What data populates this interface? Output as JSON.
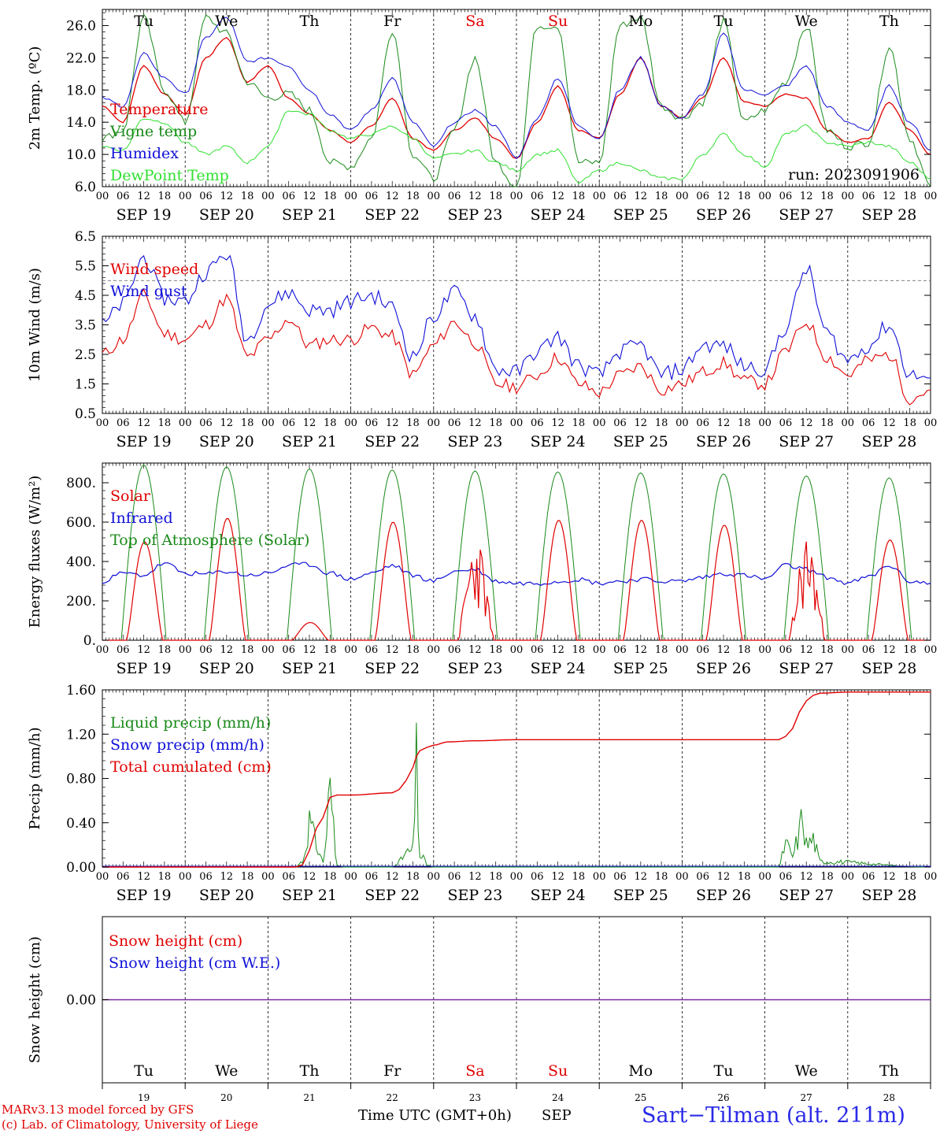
{
  "days": [
    "Tu",
    "We",
    "Th",
    "Fr",
    "Sa",
    "Su",
    "Mo",
    "Tu",
    "We",
    "Th"
  ],
  "day_colors": [
    "#000000",
    "#000000",
    "#000000",
    "#000000",
    "#e00000",
    "#e00000",
    "#000000",
    "#000000",
    "#000000",
    "#000000"
  ],
  "dates": [
    "SEP 19",
    "SEP 20",
    "SEP 21",
    "SEP 22",
    "SEP 23",
    "SEP 24",
    "SEP 25",
    "SEP 26",
    "SEP 27",
    "SEP 28"
  ],
  "day_numbers": [
    "19",
    "20",
    "21",
    "22",
    "23",
    "24",
    "25",
    "26",
    "27",
    "28"
  ],
  "hour_labels": [
    "00",
    "06",
    "12",
    "18"
  ],
  "run_label": "run: 2023091906",
  "footer": {
    "model": "MARv3.13 model forced by GFS",
    "copyright": "(c) Lab. of Climatology, University of Liege",
    "axis_title": "Time UTC (GMT+0h)",
    "month": "SEP",
    "station": "Sart−Tilman (alt. 211m)"
  },
  "colors": {
    "red": "#e00000",
    "green": "#1a8a1a",
    "blue": "#1010d8",
    "light_green": "#30e030",
    "purple": "#7a2aa0"
  },
  "chart_data": [
    {
      "type": "line",
      "id": "temp",
      "ylabel": "2m Temp. (ºC)",
      "ylim": [
        6.0,
        28.0
      ],
      "yticks": [
        6.0,
        10.0,
        14.0,
        18.0,
        22.0,
        26.0
      ],
      "ytick_labels": [
        "6.0",
        "10.0",
        "14.0",
        "18.0",
        "22.0",
        "26.0"
      ],
      "x_unit": "hours since SEP 19 00 UTC",
      "series": [
        {
          "name": "Temperature",
          "color": "red",
          "x": [
            0,
            6,
            12,
            18,
            24,
            30,
            36,
            42,
            48,
            54,
            60,
            66,
            72,
            78,
            84,
            90,
            96,
            102,
            108,
            114,
            120,
            126,
            132,
            138,
            144,
            150,
            156,
            162,
            168,
            174,
            180,
            186,
            192,
            198,
            204,
            210,
            216,
            222,
            228,
            234,
            240
          ],
          "y": [
            16.0,
            14.0,
            21.0,
            17.5,
            15.0,
            22.0,
            24.5,
            19.0,
            21.0,
            17.0,
            15.0,
            13.0,
            11.5,
            13.5,
            17.0,
            12.0,
            10.5,
            13.0,
            14.5,
            12.0,
            9.5,
            14.0,
            18.5,
            13.0,
            12.0,
            17.5,
            22.0,
            16.0,
            14.5,
            17.0,
            22.0,
            16.5,
            16.0,
            17.5,
            17.0,
            13.0,
            11.5,
            12.0,
            16.5,
            13.0,
            10.0
          ]
        },
        {
          "name": "Vigne temp",
          "color": "green",
          "x": [
            0,
            6,
            12,
            18,
            24,
            30,
            36,
            42,
            48,
            54,
            60,
            66,
            72,
            78,
            84,
            90,
            96,
            102,
            108,
            114,
            120,
            126,
            132,
            138,
            144,
            150,
            156,
            162,
            168,
            174,
            180,
            186,
            192,
            198,
            204,
            210,
            216,
            222,
            228,
            234,
            240
          ],
          "y": [
            12.0,
            13.0,
            27.0,
            18.0,
            14.0,
            27.0,
            25.0,
            19.0,
            17.0,
            17.5,
            15.5,
            9.0,
            8.5,
            12.0,
            25.5,
            10.0,
            7.0,
            13.0,
            22.0,
            9.0,
            6.0,
            26.0,
            26.0,
            9.0,
            9.0,
            26.0,
            27.0,
            16.0,
            14.5,
            16.5,
            26.5,
            14.0,
            15.5,
            19.0,
            26.0,
            13.0,
            11.0,
            11.5,
            23.5,
            12.0,
            6.0
          ]
        },
        {
          "name": "Humidex",
          "color": "blue",
          "x": [
            0,
            6,
            12,
            18,
            24,
            30,
            36,
            42,
            48,
            54,
            60,
            66,
            72,
            78,
            84,
            90,
            96,
            102,
            108,
            114,
            120,
            126,
            132,
            138,
            144,
            150,
            156,
            162,
            168,
            174,
            180,
            186,
            192,
            198,
            204,
            210,
            216,
            222,
            228,
            234,
            240
          ],
          "y": [
            17.0,
            16.0,
            22.5,
            19.5,
            17.5,
            24.5,
            27.0,
            21.5,
            22.0,
            21.0,
            18.0,
            15.0,
            13.0,
            15.5,
            19.5,
            14.0,
            11.0,
            14.0,
            15.5,
            13.5,
            9.5,
            14.5,
            19.5,
            13.5,
            12.0,
            18.0,
            22.0,
            16.0,
            14.5,
            17.5,
            25.0,
            18.0,
            17.5,
            18.5,
            21.0,
            16.0,
            14.0,
            13.0,
            18.5,
            14.0,
            10.5
          ]
        },
        {
          "name": "DewPoint Temp",
          "color": "light_green",
          "x": [
            0,
            6,
            12,
            18,
            24,
            30,
            36,
            42,
            48,
            54,
            60,
            66,
            72,
            78,
            84,
            90,
            96,
            102,
            108,
            114,
            120,
            126,
            132,
            138,
            144,
            150,
            156,
            162,
            168,
            174,
            180,
            186,
            192,
            198,
            204,
            210,
            216,
            222,
            228,
            234,
            240
          ],
          "y": [
            11.0,
            10.5,
            14.5,
            14.0,
            11.5,
            10.0,
            11.0,
            9.0,
            11.0,
            15.5,
            15.0,
            13.0,
            12.0,
            12.5,
            13.5,
            12.0,
            9.5,
            10.0,
            10.5,
            9.0,
            8.0,
            10.0,
            10.5,
            6.5,
            8.0,
            9.0,
            8.0,
            7.0,
            7.0,
            10.0,
            12.5,
            10.0,
            8.5,
            12.5,
            13.5,
            11.5,
            11.0,
            11.5,
            11.0,
            9.0,
            7.0
          ]
        }
      ]
    },
    {
      "type": "line",
      "id": "wind",
      "ylabel": "10m Wind (m/s)",
      "ylim": [
        0.5,
        6.5
      ],
      "yticks": [
        0.5,
        1.5,
        2.5,
        3.5,
        4.5,
        5.5,
        6.5
      ],
      "ytick_labels": [
        "0.5",
        "1.5",
        "2.5",
        "3.5",
        "4.5",
        "5.5",
        "6.5"
      ],
      "reference_line": 5.0,
      "series": [
        {
          "name": "Wind speed",
          "color": "red",
          "x": [
            0,
            6,
            12,
            18,
            24,
            30,
            36,
            42,
            48,
            54,
            60,
            66,
            72,
            78,
            84,
            90,
            96,
            102,
            108,
            114,
            120,
            126,
            132,
            138,
            144,
            150,
            156,
            162,
            168,
            174,
            180,
            186,
            192,
            198,
            204,
            210,
            216,
            222,
            228,
            234,
            240
          ],
          "y": [
            2.5,
            3.0,
            4.5,
            3.2,
            3.0,
            3.5,
            4.4,
            2.4,
            3.0,
            3.7,
            2.8,
            3.0,
            3.0,
            3.4,
            3.1,
            1.8,
            2.8,
            3.6,
            2.9,
            1.5,
            1.4,
            1.8,
            2.4,
            1.5,
            1.2,
            1.8,
            2.1,
            1.3,
            1.5,
            1.9,
            2.2,
            1.6,
            1.5,
            2.6,
            3.6,
            2.4,
            1.8,
            2.3,
            2.5,
            1.0,
            1.3
          ]
        },
        {
          "name": "Wind gust",
          "color": "blue",
          "x": [
            0,
            6,
            12,
            18,
            24,
            30,
            36,
            42,
            48,
            54,
            60,
            66,
            72,
            78,
            84,
            90,
            96,
            102,
            108,
            114,
            120,
            126,
            132,
            138,
            144,
            150,
            156,
            162,
            168,
            174,
            180,
            186,
            192,
            198,
            204,
            210,
            216,
            222,
            228,
            234,
            240
          ],
          "y": [
            3.5,
            4.2,
            5.8,
            4.4,
            4.3,
            5.3,
            5.9,
            3.0,
            4.2,
            4.6,
            4.0,
            4.0,
            4.3,
            4.5,
            4.1,
            2.4,
            3.8,
            4.6,
            3.8,
            2.0,
            1.9,
            2.6,
            3.1,
            2.1,
            1.8,
            2.6,
            2.8,
            1.8,
            2.0,
            2.8,
            2.8,
            2.1,
            2.0,
            3.4,
            5.4,
            3.2,
            2.3,
            2.8,
            3.5,
            1.8,
            1.7
          ]
        }
      ]
    },
    {
      "type": "line",
      "id": "energy",
      "ylabel": "Energy fluxes (W/m²)",
      "ylim": [
        0,
        900
      ],
      "yticks": [
        0,
        200,
        400,
        600,
        800
      ],
      "ytick_labels": [
        "0.",
        "200.",
        "400.",
        "600.",
        "800."
      ],
      "solar_peaks": [
        500,
        620,
        90,
        600,
        520,
        610,
        610,
        585,
        520,
        510
      ],
      "toa_peaks": [
        890,
        880,
        870,
        865,
        860,
        855,
        850,
        845,
        835,
        825
      ],
      "series": [
        {
          "name": "Solar",
          "color": "red"
        },
        {
          "name": "Infrared",
          "color": "blue",
          "x": [
            0,
            6,
            12,
            18,
            24,
            30,
            36,
            42,
            48,
            54,
            60,
            66,
            72,
            78,
            84,
            90,
            96,
            102,
            108,
            114,
            120,
            126,
            132,
            138,
            144,
            150,
            156,
            162,
            168,
            174,
            180,
            186,
            192,
            198,
            204,
            210,
            216,
            222,
            228,
            234,
            240
          ],
          "y": [
            300,
            340,
            330,
            390,
            340,
            335,
            350,
            330,
            340,
            380,
            385,
            340,
            310,
            340,
            380,
            330,
            300,
            350,
            360,
            300,
            290,
            290,
            300,
            310,
            290,
            300,
            310,
            300,
            300,
            320,
            340,
            330,
            310,
            380,
            360,
            320,
            290,
            320,
            380,
            300,
            290
          ]
        },
        {
          "name": "Top of Atmosphere (Solar)",
          "color": "green"
        }
      ]
    },
    {
      "type": "line",
      "id": "precip",
      "ylabel": "Precip (mm/h)",
      "ylim": [
        0,
        1.6
      ],
      "yticks": [
        0,
        0.4,
        0.8,
        1.2,
        1.6
      ],
      "ytick_labels": [
        "0.00",
        "0.40",
        "0.80",
        "1.20",
        "1.60"
      ],
      "series": [
        {
          "name": "Liquid precip (mm/h)",
          "color": "green",
          "x": [
            0,
            56,
            58,
            60,
            62,
            64,
            66,
            68,
            70,
            72,
            84,
            86,
            88,
            90,
            91,
            92,
            93,
            94,
            96,
            120,
            196,
            198,
            200,
            202,
            203,
            204,
            206,
            208,
            240
          ],
          "y": [
            0,
            0,
            0.05,
            0.4,
            0.2,
            0.05,
            0.65,
            0.02,
            0,
            0,
            0,
            0.05,
            0.12,
            0.15,
            0.9,
            0.1,
            0.08,
            0.02,
            0,
            0,
            0,
            0.2,
            0.1,
            0.3,
            0.5,
            0.2,
            0.25,
            0.05,
            0
          ]
        },
        {
          "name": "Snow precip (mm/h)",
          "color": "blue"
        },
        {
          "name": "Total cumulated (cm)",
          "color": "red",
          "x": [
            0,
            56,
            58,
            60,
            62,
            64,
            66,
            68,
            72,
            84,
            86,
            88,
            90,
            91,
            92,
            94,
            96,
            100,
            108,
            120,
            144,
            168,
            190,
            196,
            198,
            200,
            202,
            204,
            206,
            208,
            216,
            240
          ],
          "y": [
            0,
            0,
            0.02,
            0.15,
            0.35,
            0.45,
            0.63,
            0.65,
            0.65,
            0.67,
            0.7,
            0.78,
            0.9,
            1.0,
            1.05,
            1.08,
            1.1,
            1.13,
            1.14,
            1.15,
            1.15,
            1.15,
            1.15,
            1.15,
            1.18,
            1.25,
            1.4,
            1.5,
            1.55,
            1.57,
            1.58,
            1.58
          ]
        }
      ]
    },
    {
      "type": "line",
      "id": "snow",
      "ylabel": "Snow height (cm)",
      "ylim": [
        -1,
        1
      ],
      "yticks": [
        0
      ],
      "ytick_labels": [
        "0.00"
      ],
      "series": [
        {
          "name": "Snow height (cm)",
          "color": "red",
          "x": [
            0,
            240
          ],
          "y": [
            0,
            0
          ]
        },
        {
          "name": "Snow height (cm W.E.)",
          "color": "blue",
          "x": [
            0,
            240
          ],
          "y": [
            0,
            0
          ]
        }
      ]
    }
  ]
}
